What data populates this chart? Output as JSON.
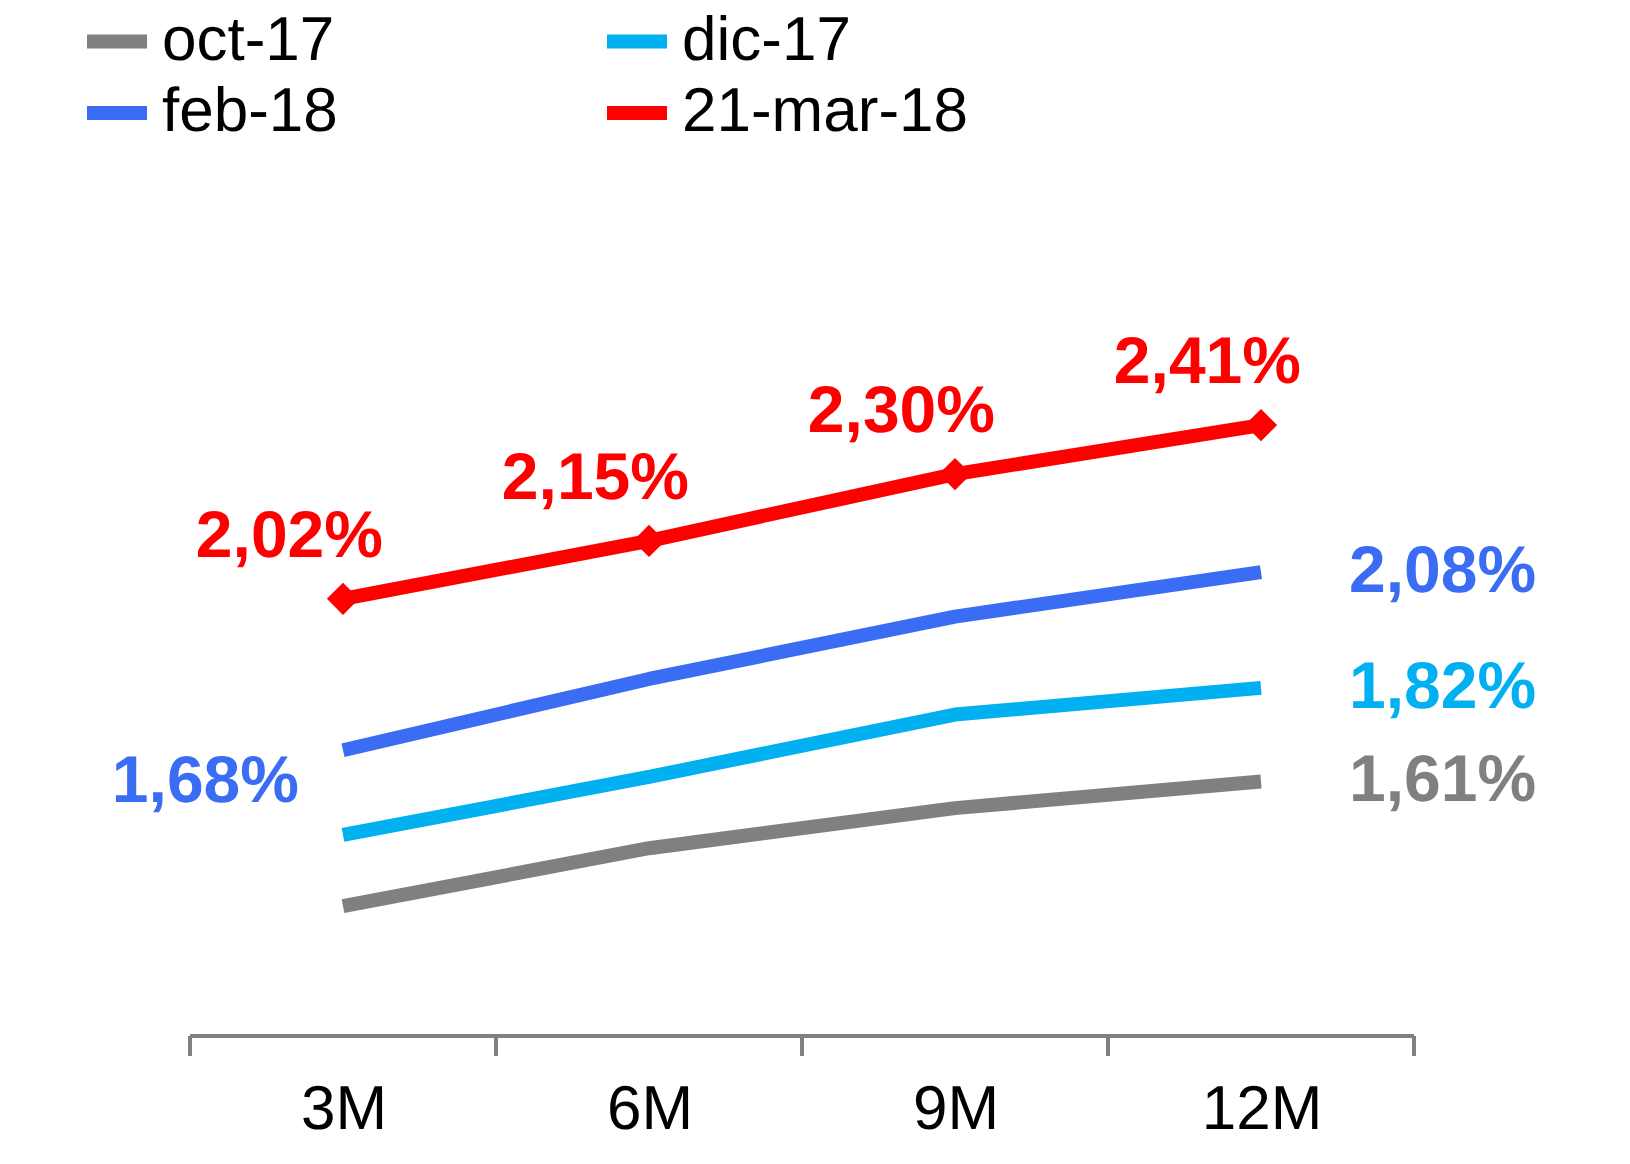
{
  "chart_data": {
    "type": "line",
    "categories": [
      "3M",
      "6M",
      "9M",
      "12M"
    ],
    "series": [
      {
        "name": "oct-17",
        "color": "#808080",
        "marker": "none",
        "values": [
          1.33,
          1.46,
          1.55,
          1.61
        ],
        "value_labels": [
          null,
          null,
          null,
          "1,61%"
        ]
      },
      {
        "name": "dic-17",
        "color": "#00b0f0",
        "marker": "none",
        "values": [
          1.49,
          1.62,
          1.76,
          1.82
        ],
        "value_labels": [
          null,
          null,
          null,
          "1,82%"
        ]
      },
      {
        "name": "feb-18",
        "color": "#3a6cf4",
        "marker": "none",
        "values": [
          1.68,
          1.84,
          1.98,
          2.08
        ],
        "value_labels": [
          "1,68%",
          null,
          null,
          "2,08%"
        ]
      },
      {
        "name": "21-mar-18",
        "color": "#ff0000",
        "marker": "diamond",
        "values": [
          2.02,
          2.15,
          2.3,
          2.41
        ],
        "value_labels": [
          "2,02%",
          "2,15%",
          "2,30%",
          "2,41%"
        ]
      }
    ],
    "legend": "top",
    "grid": false,
    "line_style": "solid"
  }
}
